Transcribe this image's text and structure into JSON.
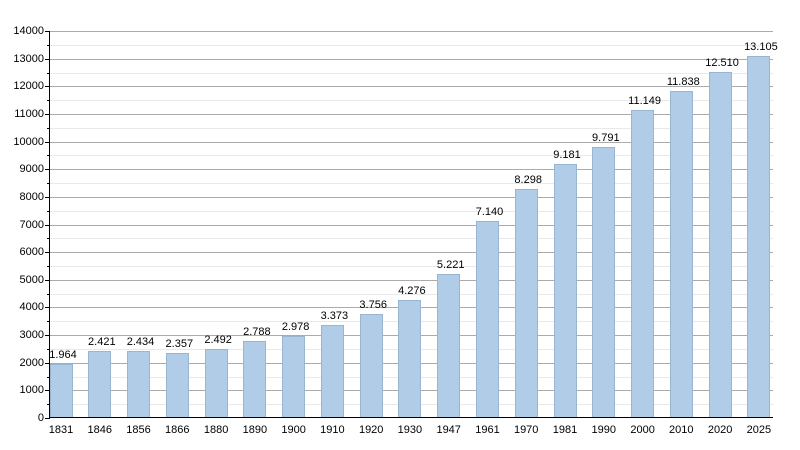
{
  "chart_data": {
    "type": "bar",
    "title": "",
    "categories": [
      "1831",
      "1846",
      "1856",
      "1866",
      "1880",
      "1890",
      "1900",
      "1910",
      "1920",
      "1930",
      "1947",
      "1961",
      "1970",
      "1981",
      "1990",
      "2000",
      "2010",
      "2020",
      "2025"
    ],
    "values": [
      1964,
      2421,
      2434,
      2357,
      2492,
      2788,
      2978,
      3373,
      3756,
      4276,
      5221,
      7140,
      8298,
      9181,
      9791,
      11149,
      11838,
      12510,
      13105
    ],
    "bar_labels": [
      "1.964",
      "2.421",
      "2.434",
      "2.357",
      "2.492",
      "2.788",
      "2.978",
      "3.373",
      "3.756",
      "4.276",
      "5.221",
      "7.140",
      "8.298",
      "9.181",
      "9.791",
      "11.149",
      "11.838",
      "12.510",
      "13.105"
    ],
    "xlabel": "",
    "ylabel": "",
    "ylim": [
      0,
      14000
    ],
    "ytick_step": 1000,
    "yminor_step": 500,
    "ytick_labels": [
      "0",
      "1000",
      "2000",
      "3000",
      "4000",
      "5000",
      "6000",
      "7000",
      "8000",
      "9000",
      "10000",
      "11000",
      "12000",
      "13000",
      "14000"
    ],
    "grid": "horizontal-major-and-minor",
    "legend": "none",
    "colors": {
      "bar_fill": "#b0cce6",
      "major_gridline": "#ababab",
      "minor_gridline": "#e9e9e9",
      "axis": "#000000",
      "text": "#000000",
      "background": "#ffffff"
    }
  }
}
